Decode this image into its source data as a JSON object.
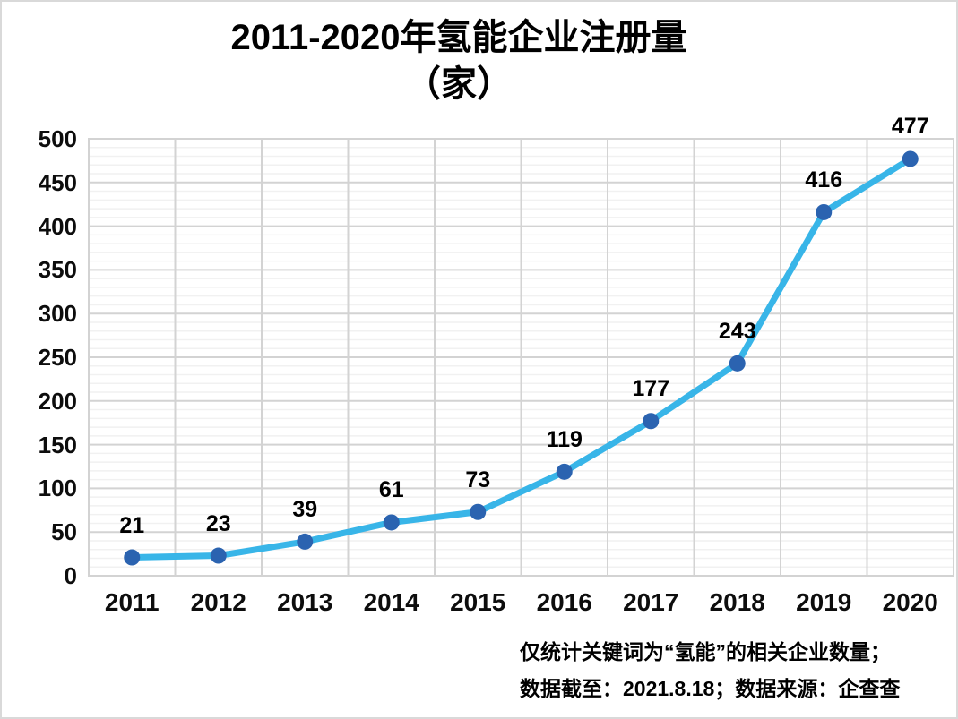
{
  "chart_data": {
    "type": "line",
    "title_line1": "2011-2020年氢能企业注册量",
    "title_line2": "（家）",
    "categories": [
      "2011",
      "2012",
      "2013",
      "2014",
      "2015",
      "2016",
      "2017",
      "2018",
      "2019",
      "2020"
    ],
    "series": [
      {
        "name": "氢能企业注册量",
        "values": [
          21,
          23,
          39,
          61,
          73,
          119,
          177,
          243,
          416,
          477
        ]
      }
    ],
    "data_labels": [
      "21",
      "23",
      "39",
      "61",
      "73",
      "119",
      "177",
      "243",
      "416",
      "477"
    ],
    "xlabel": "",
    "ylabel": "",
    "ylim": [
      0,
      500
    ],
    "ytick_step": 50,
    "yminor_step": 10,
    "ytick_labels": [
      "0",
      "50",
      "100",
      "150",
      "200",
      "250",
      "300",
      "350",
      "400",
      "450",
      "500"
    ],
    "grid": "on",
    "legend_position": "none",
    "colors": {
      "line": "#38B5E8",
      "marker": "#2B63B0",
      "grid_major": "#D3D3D3",
      "grid_minor": "#F1F1F1",
      "plot_border": "#D3D3D3",
      "text": "#000000",
      "page_border": "#D9D9D9"
    }
  },
  "footer": {
    "line1": "仅统计关键词为“氢能”的相关企业数量；",
    "line2": "数据截至：2021.8.18；数据来源：企查查"
  }
}
